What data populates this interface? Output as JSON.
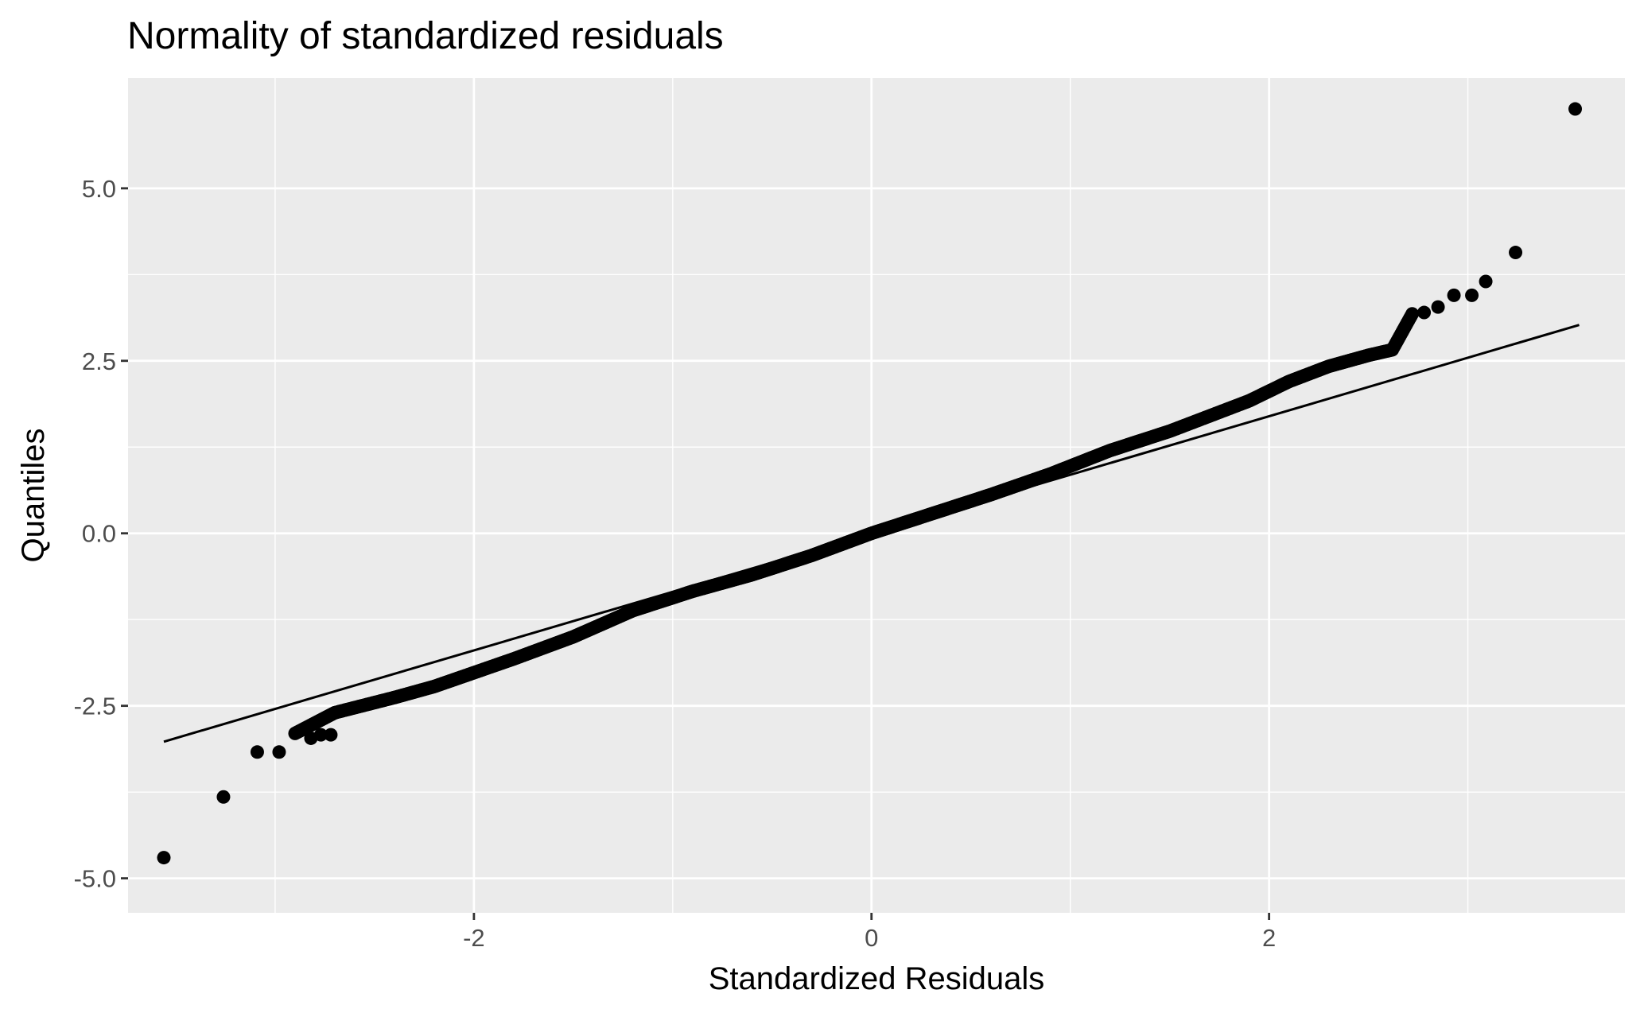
{
  "chart_data": {
    "type": "scatter",
    "title": "Normality of standardized residuals",
    "xlabel": "Standardized Residuals",
    "ylabel": "Quantiles",
    "xlim": [
      -3.74,
      3.79
    ],
    "ylim": [
      -5.5,
      6.6
    ],
    "x_ticks": [
      {
        "value": -2,
        "label": "-2"
      },
      {
        "value": 0,
        "label": "0"
      },
      {
        "value": 2,
        "label": "2"
      }
    ],
    "x_minor_ticks": [
      -3,
      -1,
      1,
      3
    ],
    "y_ticks": [
      {
        "value": -5,
        "label": "-5.0"
      },
      {
        "value": -2.5,
        "label": "-2.5"
      },
      {
        "value": 0,
        "label": "0.0"
      },
      {
        "value": 2.5,
        "label": "2.5"
      },
      {
        "value": 5,
        "label": "5.0"
      }
    ],
    "y_minor_ticks": [
      -3.75,
      -1.25,
      1.25,
      3.75
    ],
    "grid": true,
    "background": "#ebebeb",
    "grid_color": "#ffffff",
    "point_color": "#000000",
    "line_color": "#000000",
    "reference_line": {
      "x": [
        -3.56,
        3.56
      ],
      "y": [
        -3.02,
        3.02
      ]
    },
    "body_series": {
      "x_range": [
        -2.9,
        2.72
      ],
      "knots_x": [
        -2.9,
        -2.7,
        -2.4,
        -2.2,
        -2.0,
        -1.8,
        -1.5,
        -1.2,
        -0.9,
        -0.6,
        -0.3,
        0.0,
        0.3,
        0.6,
        0.9,
        1.2,
        1.5,
        1.7,
        1.9,
        2.1,
        2.3,
        2.5,
        2.62,
        2.72
      ],
      "knots_y": [
        -2.9,
        -2.6,
        -2.38,
        -2.22,
        -2.02,
        -1.82,
        -1.5,
        -1.12,
        -0.84,
        -0.6,
        -0.32,
        0.0,
        0.28,
        0.56,
        0.86,
        1.2,
        1.48,
        1.7,
        1.92,
        2.2,
        2.42,
        2.58,
        2.66,
        3.18
      ]
    },
    "series": [
      {
        "x": [
          -3.56,
          -3.26,
          -3.09,
          -2.98,
          -2.82,
          -2.77,
          -2.72,
          2.78,
          2.85,
          2.93,
          3.02,
          3.09,
          3.24,
          3.54
        ],
        "y": [
          -4.7,
          -3.82,
          -3.17,
          -3.17,
          -2.97,
          -2.92,
          -2.92,
          3.2,
          3.28,
          3.45,
          3.45,
          3.65,
          4.07,
          6.15
        ]
      }
    ]
  }
}
